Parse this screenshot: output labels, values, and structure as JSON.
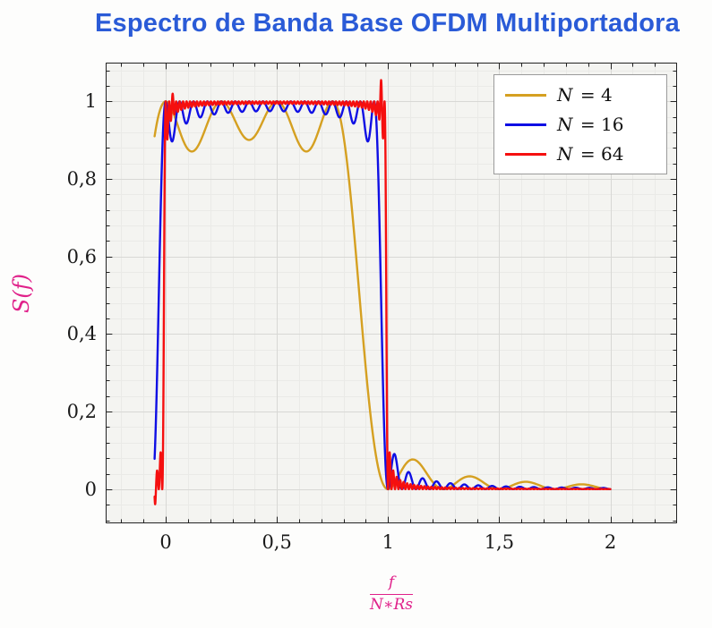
{
  "title": {
    "text": "Espectro de Banda Base OFDM Multiportadora",
    "color": "#2a5bd7"
  },
  "ylabel": {
    "text": "S(f)",
    "color": "#e0218a"
  },
  "xlabel": {
    "numerator": "f",
    "denominator": "N∗Rs",
    "color": "#e0218a"
  },
  "chart_data": {
    "type": "line",
    "title": "Espectro de Banda Base OFDM Multiportadora",
    "xlabel": "f/(N*Rs)",
    "ylabel": "S(f)",
    "xlim": [
      -0.27,
      2.3
    ],
    "ylim": [
      -0.088,
      1.1
    ],
    "x_major_ticks": [
      {
        "value": 0,
        "label": "0"
      },
      {
        "value": 0.5,
        "label": "0,5"
      },
      {
        "value": 1,
        "label": "1"
      },
      {
        "value": 1.5,
        "label": "1,5"
      },
      {
        "value": 2,
        "label": "2"
      }
    ],
    "y_major_ticks": [
      {
        "value": 0,
        "label": "0"
      },
      {
        "value": 0.2,
        "label": "0,2"
      },
      {
        "value": 0.4,
        "label": "0,4"
      },
      {
        "value": 0.6,
        "label": "0,6"
      },
      {
        "value": 0.8,
        "label": "0,8"
      },
      {
        "value": 1,
        "label": "1"
      }
    ],
    "x_minor_step": 0.1,
    "y_minor_step": 0.04,
    "grid": "both",
    "legend_position": "top-right",
    "curve_formula": "S(x) = sum_{k=0}^{N-1} sinc^2(N*x - k), with x = f/(N*Rs)",
    "x_range": [
      -0.05,
      2.0
    ],
    "series": [
      {
        "name": "N = 4",
        "N": 4,
        "color": "#d5a021",
        "anchor_points": [
          [
            -0.05,
            0.91
          ],
          [
            0,
            1.0
          ],
          [
            0.125,
            0.87
          ],
          [
            0.25,
            1.0
          ],
          [
            0.375,
            0.9
          ],
          [
            0.5,
            1.0
          ],
          [
            0.625,
            0.87
          ],
          [
            0.75,
            1.0
          ],
          [
            0.875,
            0.47
          ],
          [
            1.0,
            0.0
          ],
          [
            1.125,
            0.074
          ],
          [
            1.375,
            0.033
          ],
          [
            1.625,
            0.019
          ],
          [
            1.875,
            0.012
          ]
        ]
      },
      {
        "name": "N = 16",
        "N": 16,
        "color": "#0f0fe4",
        "anchor_points": [
          [
            -0.05,
            0.08
          ],
          [
            0,
            1.0
          ],
          [
            0.031,
            0.9
          ],
          [
            0.5,
            1.0
          ],
          [
            0.969,
            0.9
          ],
          [
            1.0,
            0.0
          ],
          [
            1.094,
            0.066
          ],
          [
            1.2,
            0.01
          ]
        ]
      },
      {
        "name": "N = 64",
        "N": 64,
        "color": "#f50f0f",
        "gibbs_spikes": [
          {
            "x": 0.9688,
            "amp": 0.055,
            "w": 0.005
          },
          {
            "x": 0.0313,
            "amp": 0.02,
            "w": 0.005
          },
          {
            "x": -0.048,
            "amp": -0.04,
            "w": 0.004
          }
        ],
        "anchor_points": [
          [
            -0.05,
            -0.02
          ],
          [
            0,
            1.0
          ],
          [
            0.5,
            1.0
          ],
          [
            0.969,
            1.05
          ],
          [
            1.0,
            0.0
          ],
          [
            1.05,
            0.01
          ]
        ]
      }
    ],
    "colors": {
      "plot_bg": "#f4f4f1",
      "grid_major": "#d8d8d5",
      "grid_minor": "#eaeae7",
      "axis": "#222222",
      "tick_label": "#1a1a1a"
    }
  }
}
